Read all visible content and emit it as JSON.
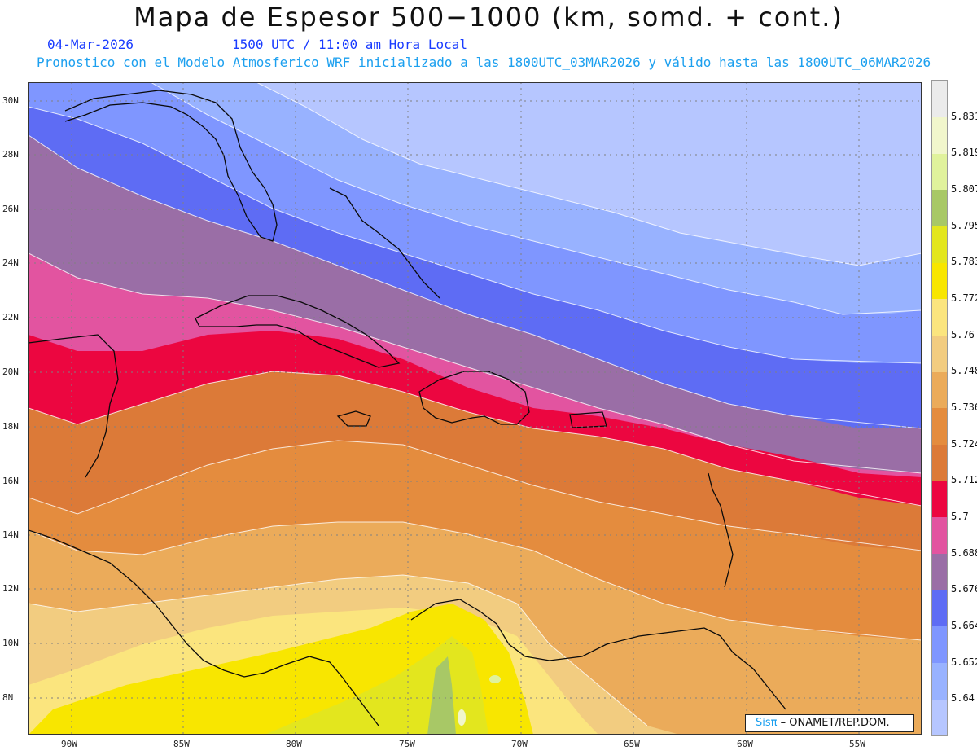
{
  "header": {
    "title": "Mapa de Espesor 500−1000 (km, somd. + cont.)",
    "date": "04-Mar-2026",
    "time": "1500 UTC / 11:00 am Hora Local",
    "description": "Pronostico con el Modelo Atmosferico WRF inicializado a las 1800UTC_03MAR2026 y válido hasta las  1800UTC_06MAR2026"
  },
  "map": {
    "lat_labels": [
      "30N",
      "28N",
      "26N",
      "24N",
      "22N",
      "20N",
      "18N",
      "16N",
      "14N",
      "12N",
      "10N",
      "8N"
    ],
    "lon_labels": [
      "90W",
      "85W",
      "80W",
      "75W",
      "70W",
      "65W",
      "60W",
      "55W"
    ]
  },
  "legend": {
    "levels": [
      "5.64",
      "5.652",
      "5.664",
      "5.676",
      "5.688",
      "5.7",
      "5.712",
      "5.724",
      "5.736",
      "5.748",
      "5.76",
      "5.772",
      "5.783",
      "5.795",
      "5.807",
      "5.819",
      "5.831"
    ],
    "colors": [
      "#b6c6ff",
      "#98b2ff",
      "#7f96ff",
      "#5e6cf4",
      "#9a6ea6",
      "#e254a0",
      "#ec0640",
      "#dc7a38",
      "#e48c3e",
      "#ebab5a",
      "#f2cc80",
      "#fbe57e",
      "#f8e600",
      "#e3e61e",
      "#a8c866",
      "#e0f29c",
      "#f1f6cc",
      "#ebebeb"
    ]
  },
  "credit": {
    "brand": "Sisπ",
    "org": "– ONAMET/REP.DOM."
  }
}
